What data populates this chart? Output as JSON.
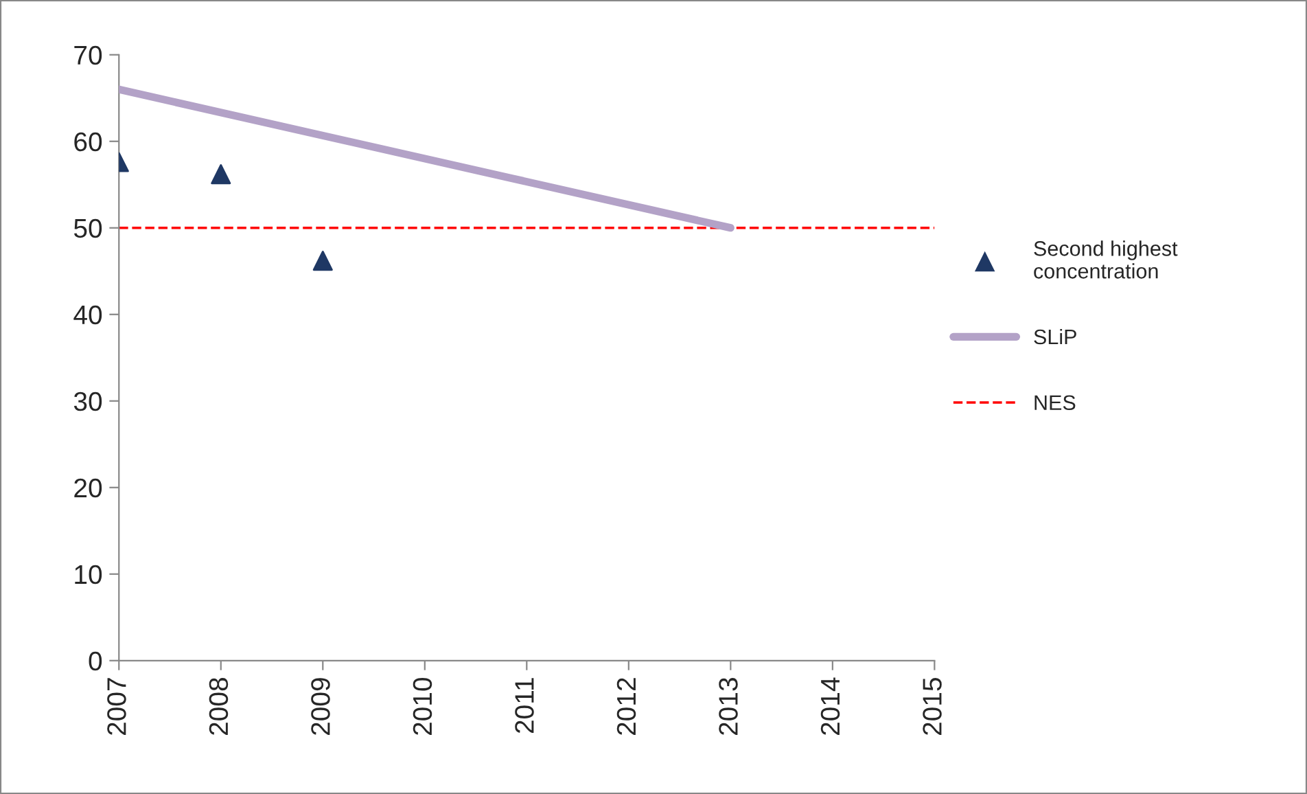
{
  "chart_data": {
    "type": "line",
    "xlim": [
      2007,
      2015
    ],
    "xticks": [
      2007,
      2008,
      2009,
      2010,
      2011,
      2012,
      2013,
      2014,
      2015
    ],
    "ylim": [
      0,
      70
    ],
    "yticks": [
      0,
      10,
      20,
      30,
      40,
      50,
      60,
      70
    ],
    "series": [
      {
        "name": "Second highest concentration",
        "type": "scatter",
        "marker": "triangle",
        "color": "#1f3864",
        "x": [
          2007,
          2008,
          2009
        ],
        "values": [
          57.6,
          56.2,
          46.2
        ]
      },
      {
        "name": "SLiP",
        "color": "#b3a2c7",
        "x": [
          2007,
          2013
        ],
        "values": [
          66,
          50
        ]
      }
    ],
    "ref_lines": [
      {
        "axis": "y",
        "value": 50,
        "label": "NES",
        "color": "#ff0000",
        "line_style": "dashed"
      }
    ],
    "grid": false,
    "legend": "right"
  }
}
